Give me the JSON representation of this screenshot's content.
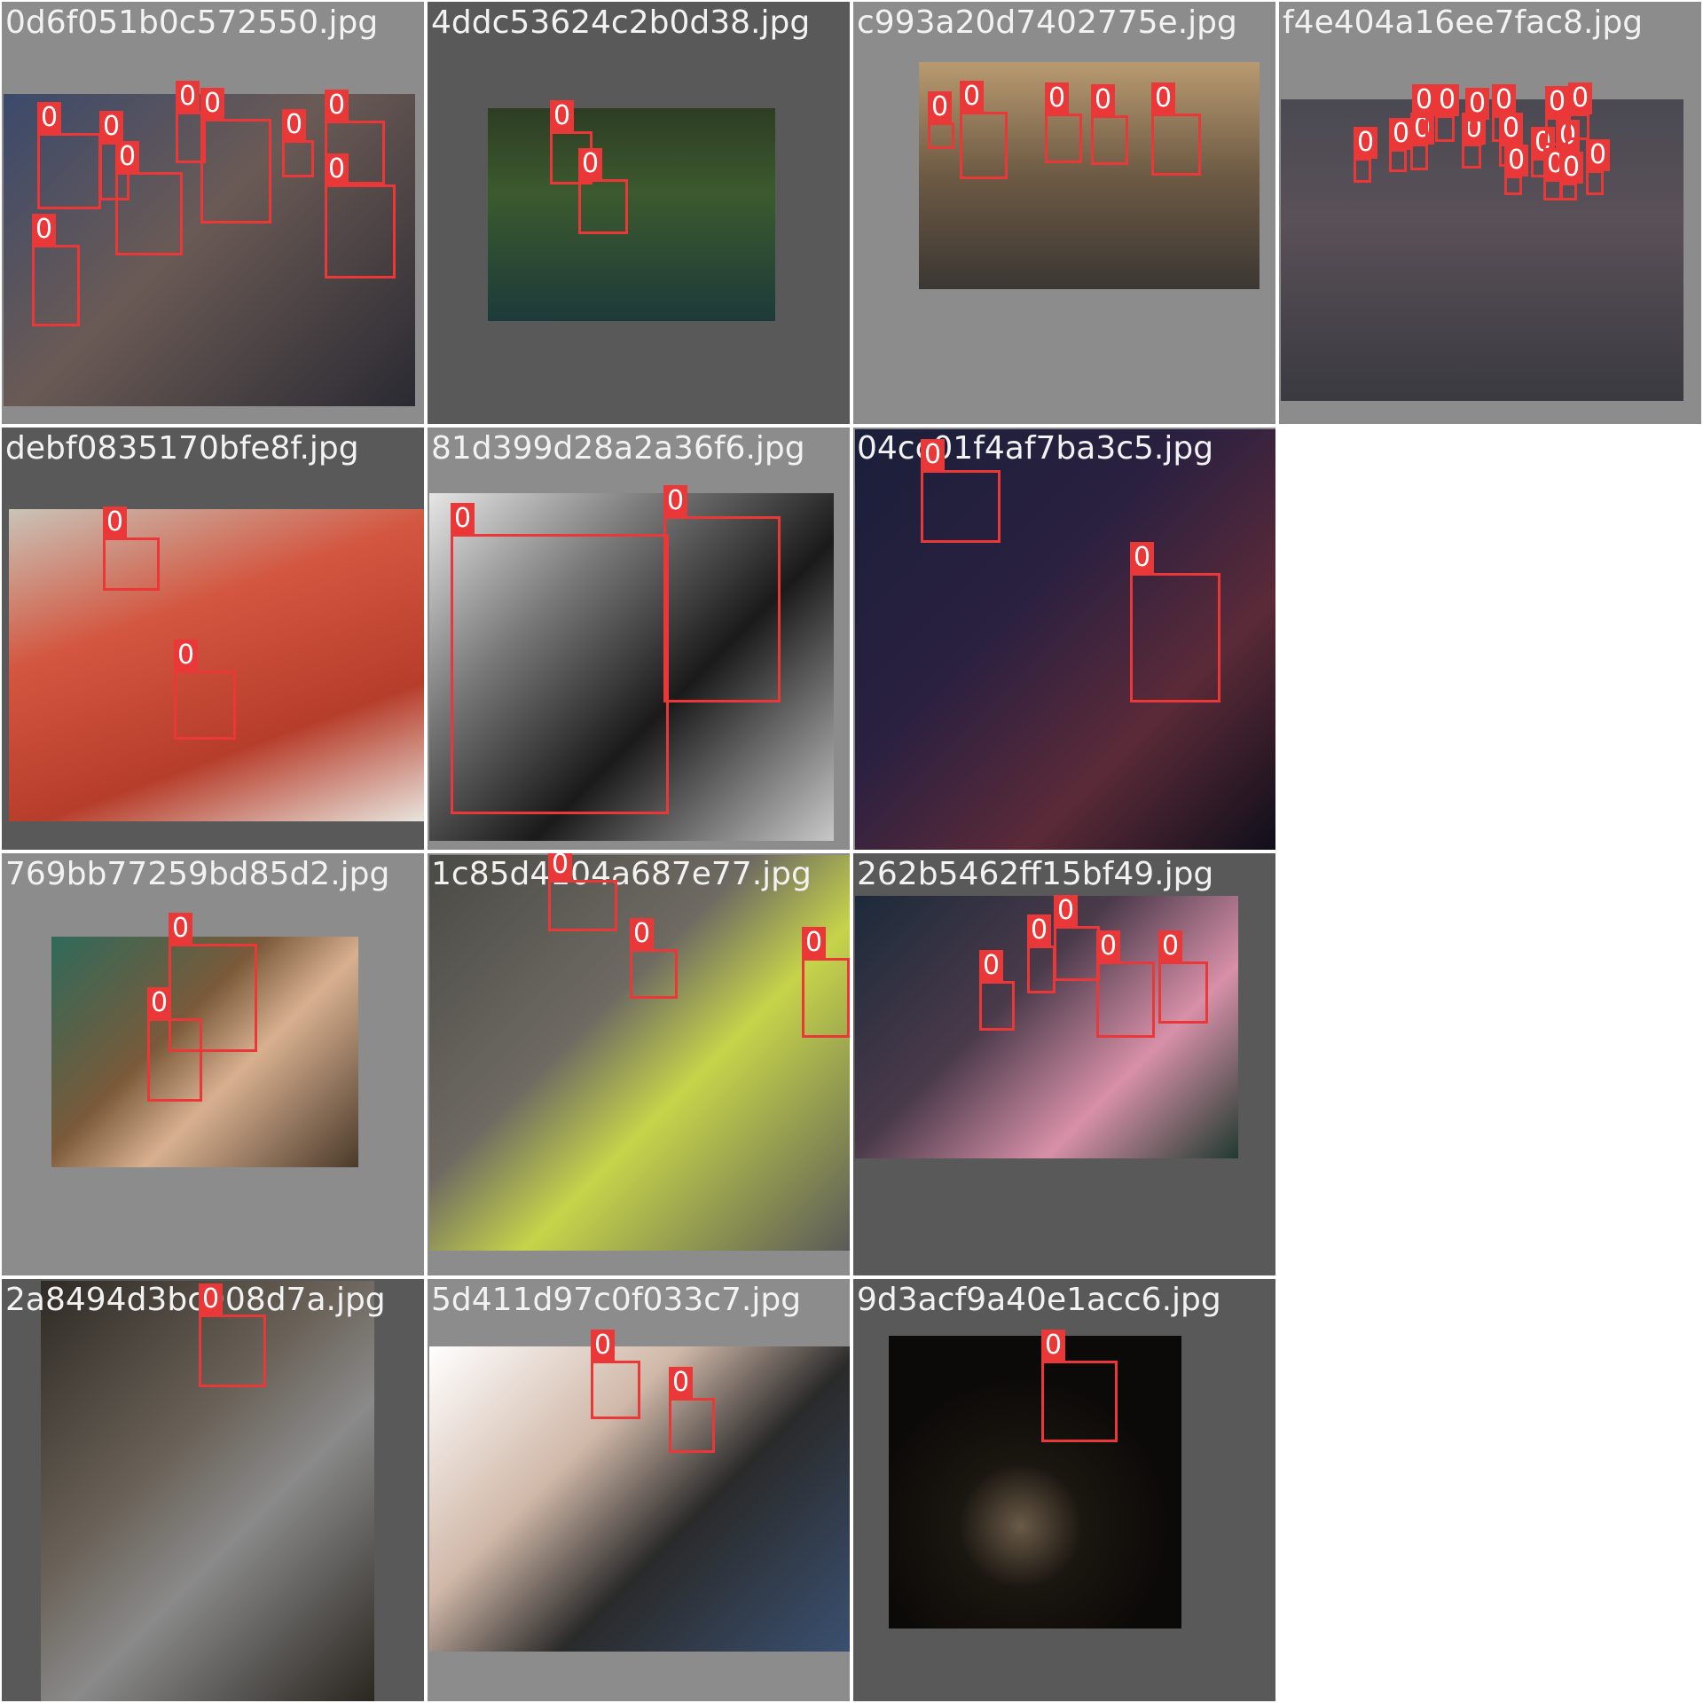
{
  "colors": {
    "box": "#ea3838",
    "label_text": "#ffffff",
    "filename_text": "#f2f2f2"
  },
  "class_label": "0",
  "tiles": [
    {
      "filename": "0d6f051b0c572550.jpg",
      "bg": "mid"
    },
    {
      "filename": "4ddc53624c2b0d38.jpg",
      "bg": "dark"
    },
    {
      "filename": "c993a20d7402775e.jpg",
      "bg": "mid"
    },
    {
      "filename": "f4e404a16ee7fac8.jpg",
      "bg": "mid"
    },
    {
      "filename": "debf0835170bfe8f.jpg",
      "bg": "dark"
    },
    {
      "filename": "81d399d28a2a36f6.jpg",
      "bg": "mid"
    },
    {
      "filename": "04cc01f4af7ba3c5.jpg",
      "bg": "mid"
    },
    {
      "filename": "769bb77259bd85d2.jpg",
      "bg": "mid"
    },
    {
      "filename": "1c85d4104a687e77.jpg",
      "bg": "mid"
    },
    {
      "filename": "262b5462ff15bf49.jpg",
      "bg": "dark"
    },
    {
      "filename": "2a8494d3bc908d7a.jpg",
      "bg": "dark"
    },
    {
      "filename": "5d411d97c0f033c7.jpg",
      "bg": "mid"
    },
    {
      "filename": "9d3acf9a40e1acc6.jpg",
      "bg": "dark"
    }
  ]
}
